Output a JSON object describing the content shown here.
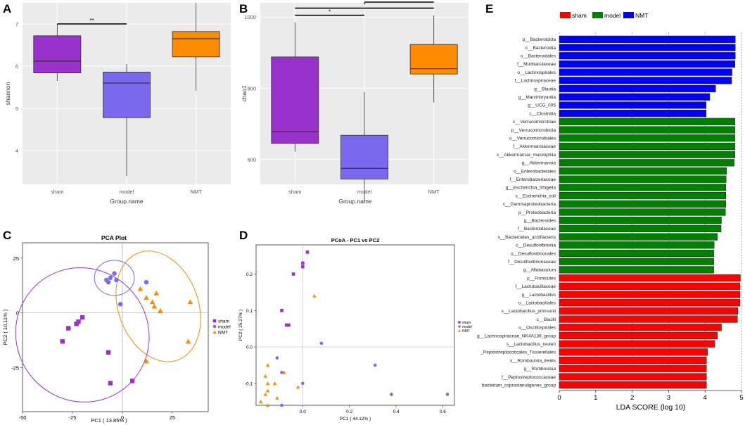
{
  "panel_letters": [
    "A",
    "B",
    "C",
    "D",
    "E"
  ],
  "chart_data": [
    {
      "type": "box",
      "panel": "A",
      "ylabel": "shannon",
      "xlabel": "Group.name",
      "ylim": [
        3.2,
        7.5
      ],
      "yticks": [
        4,
        5,
        6,
        7
      ],
      "categories": [
        "sham",
        "model",
        "NMT"
      ],
      "boxes": [
        {
          "group": "sham",
          "min": 5.65,
          "q1": 5.84,
          "median": 6.12,
          "q3": 6.72,
          "max": 7.0,
          "color": "#9932CC"
        },
        {
          "group": "model",
          "min": 3.4,
          "q1": 4.78,
          "median": 5.6,
          "q3": 5.86,
          "max": 6.05,
          "color": "#7B68EE"
        },
        {
          "group": "NMT",
          "min": 5.42,
          "q1": 6.22,
          "median": 6.65,
          "q3": 6.82,
          "max": 7.5,
          "color": "#FF8C00"
        }
      ],
      "significance": [
        {
          "from": 0,
          "to": 1,
          "label": "**",
          "y": 7.0
        },
        {
          "from": 1,
          "to": 2,
          "label": "**",
          "y": 7.6
        }
      ]
    },
    {
      "type": "box",
      "panel": "B",
      "ylabel": "chao1",
      "xlabel": "Group.name",
      "ylim": [
        530,
        1040
      ],
      "yticks": [
        600,
        800,
        1000
      ],
      "categories": [
        "sham",
        "model",
        "NMT"
      ],
      "boxes": [
        {
          "group": "sham",
          "min": 622,
          "q1": 645,
          "median": 678,
          "q3": 888,
          "max": 985,
          "color": "#9932CC"
        },
        {
          "group": "model",
          "min": 478,
          "q1": 545,
          "median": 575,
          "q3": 668,
          "max": 790,
          "color": "#7B68EE"
        },
        {
          "group": "NMT",
          "min": 760,
          "q1": 840,
          "median": 855,
          "q3": 923,
          "max": 1005,
          "color": "#FF8C00"
        }
      ],
      "significance": [
        {
          "from": 0,
          "to": 1,
          "label": "*",
          "y": 1005
        },
        {
          "from": 0,
          "to": 2,
          "label": "*",
          "y": 1025
        },
        {
          "from": 1,
          "to": 2,
          "label": "**",
          "y": 1042
        }
      ]
    },
    {
      "type": "scatter",
      "panel": "C",
      "title": "PCA Plot",
      "xlabel": "PC1 ( 13.85% )",
      "ylabel": "PC2 ( 10.11% )",
      "xlim": [
        -50,
        43
      ],
      "ylim": [
        -45,
        32
      ],
      "xticks": [
        -50,
        -25,
        0,
        25
      ],
      "yticks": [
        -25,
        0,
        25
      ],
      "legend": [
        "sham",
        "model",
        "NMT"
      ],
      "legend_position": "right",
      "series": [
        {
          "name": "sham",
          "shape": "square",
          "color": "#9932CC",
          "points": [
            [
              -30,
              -13
            ],
            [
              -27,
              -7
            ],
            [
              -23,
              -5
            ],
            [
              -22,
              -4
            ],
            [
              -20,
              -2
            ],
            [
              -7,
              -18
            ],
            [
              -6,
              -32
            ],
            [
              5,
              -31
            ]
          ]
        },
        {
          "name": "model",
          "shape": "circle",
          "color": "#7B68EE",
          "points": [
            [
              -8,
              15
            ],
            [
              -7,
              14
            ],
            [
              -6,
              16
            ],
            [
              -4,
              18
            ],
            [
              -3,
              15
            ],
            [
              -1,
              4
            ],
            [
              12,
              14
            ]
          ]
        },
        {
          "name": "NMT",
          "shape": "triangle",
          "color": "#FF8C00",
          "points": [
            [
              9,
              11
            ],
            [
              12,
              7
            ],
            [
              15,
              5
            ],
            [
              16,
              3
            ],
            [
              17,
              9
            ],
            [
              19,
              1
            ],
            [
              12,
              -22
            ],
            [
              34,
              5
            ],
            [
              33,
              -13
            ]
          ]
        }
      ],
      "ellipses": [
        {
          "name": "sham",
          "cx": -20,
          "cy": -10,
          "rx": 33,
          "ry": 31,
          "angle": -40,
          "color": "#9932CC"
        },
        {
          "name": "model",
          "cx": -4,
          "cy": 16,
          "rx": 10,
          "ry": 8,
          "angle": 0,
          "color": "#7B68EE"
        },
        {
          "name": "NMT",
          "cx": 18,
          "cy": 3,
          "rx": 20,
          "ry": 26,
          "angle": -20,
          "color": "#FF8C00"
        }
      ]
    },
    {
      "type": "scatter",
      "panel": "D",
      "title": "PCoA - PC1 vs PC2",
      "xlabel": "PC1 ( 44.12% )",
      "ylabel": "PC2 ( 25.27% )",
      "xlim": [
        -0.2,
        0.65
      ],
      "ylim": [
        -0.16,
        0.28
      ],
      "xticks": [
        0.0,
        0.2,
        0.4,
        0.6
      ],
      "xtick_labels": [
        "0.0",
        "0.2",
        "0.4",
        "0.6"
      ],
      "yticks": [
        -0.1,
        0.0,
        0.1,
        0.2
      ],
      "ytick_labels": [
        "-0.1",
        "0.0",
        "0.1",
        "0.2"
      ],
      "legend": [
        "sham",
        "model",
        "NMT"
      ],
      "legend_position": "right",
      "series": [
        {
          "name": "sham",
          "shape": "square",
          "color": "#9932CC",
          "points": [
            [
              0.02,
              0.26
            ],
            [
              0.0,
              0.23
            ],
            [
              0.0,
              0.22
            ],
            [
              -0.04,
              0.2
            ],
            [
              -0.09,
              0.1
            ],
            [
              -0.07,
              0.06
            ],
            [
              -0.06,
              0.06
            ]
          ]
        },
        {
          "name": "model",
          "shape": "circle",
          "color": "#7B68EE",
          "points": [
            [
              -0.11,
              -0.03
            ],
            [
              -0.09,
              -0.07
            ],
            [
              0.0,
              -0.1
            ],
            [
              0.08,
              0.01
            ],
            [
              0.31,
              -0.05
            ],
            [
              0.38,
              -0.13
            ],
            [
              0.62,
              -0.13
            ],
            [
              -0.09,
              -0.16
            ]
          ]
        },
        {
          "name": "NMT",
          "shape": "triangle",
          "color": "#FF8C00",
          "points": [
            [
              0.05,
              0.14
            ],
            [
              -0.15,
              -0.05
            ],
            [
              -0.16,
              -0.08
            ],
            [
              -0.12,
              -0.1
            ],
            [
              -0.15,
              -0.12
            ],
            [
              -0.16,
              -0.13
            ],
            [
              -0.18,
              -0.15
            ],
            [
              -0.15,
              -0.16
            ],
            [
              -0.11,
              -0.14
            ],
            [
              -0.02,
              -0.11
            ],
            [
              -0.08,
              -0.07
            ],
            [
              -0.15,
              -0.1
            ]
          ]
        }
      ]
    },
    {
      "type": "bar",
      "orientation": "horizontal",
      "panel": "E",
      "xlabel": "LDA SCORE (log 10)",
      "xlim": [
        0,
        5
      ],
      "xticks": [
        0,
        1,
        2,
        3,
        4,
        5
      ],
      "legend": [
        {
          "name": "sham",
          "color": "#FF0000"
        },
        {
          "name": "model",
          "color": "#008000"
        },
        {
          "name": "NMT",
          "color": "#0000FF"
        }
      ],
      "categories": [
        "p__Bacteroidota",
        "c__Bacteroidia",
        "o__Bacteroidales",
        "f__Muribaculaceae",
        "o__Lachnospirales",
        "f__Lachnospiraceae",
        "g__Blautia",
        "g__Marvinbryantia",
        "g__UCG_005",
        "c__Clostridia",
        "c__Verrucomicrobiae",
        "p__Verrucomicrobiota",
        "o__Verrucomicrobiales",
        "f__Akkermansiaceae",
        "s__Akkermansia_muciniphila",
        "g__Akkermansia",
        "o__Enterobacterales",
        "f__Enterobacteriaceae",
        "g__Escherichia_Shigella",
        "s__Escherichia_coli",
        "c__Gammaproteobacteria",
        "p__Proteobacteria",
        "g__Bacteroides",
        "f__Bacteroidaceae",
        "s__Bacteroides_acidifaciens",
        "c__Desulfovibrionia",
        "o__Desulfovibrionales",
        "f__Desulfovibrionaceae",
        "g__Allobaculum",
        "p__Firmicutes",
        "f__Lactobacillaceae",
        "g__Lactobacillus",
        "o__Lactobacillales",
        "s__Lactobacillus_johnsonii",
        "c__Bacilli",
        "o__Oscillospirales",
        "g__Lachnospiraceae_NK4A136_group",
        "s__Lactobacillus_reuteri",
        "o__Peptostreptococcales_Tissierellales",
        "s__Romboutsia_ilealis",
        "g__Romboutsia",
        "f__Peptostreptococcaceae",
        "g__bacterium_coprostanoligenes_group"
      ],
      "category_labels": [
        "p__Bacteroidota",
        "c__Bacteroidia",
        "o__Bacteroidales",
        "f__Muribaculaceae",
        "o__Lachnospirales",
        "f__Lachnospiraceae",
        "g__Blautia",
        "g__Marvinbryantia",
        "g__UCG_005",
        "c__Clostridia",
        "c__Verrucomicrobiae",
        "p__Verrucomicrobiota",
        "o__Verrucomicrobiales",
        "f__Akkermansiaceae",
        "s__Akkermansia_muciniphila",
        "g__Akkermansia",
        "o__Enterobacterales",
        "f__Enterobacteriaceae",
        "g__Escherichia_Shigella",
        "s__Escherichia_coli",
        "c__Gammaproteobacteria",
        "p__Proteobacteria",
        "g__Bacteroides",
        "f__Bacteroidaceae",
        "s__Bacteroides_acidifaciens",
        "c__Desulfovibrionia",
        "o__Desulfovibrionales",
        "f__Desulfovibrionaceae",
        "g__Allobaculum",
        "p__Firmicutes",
        "f__Lactobacillaceae",
        "g__Lactobacillus",
        "o__Lactobacillales",
        "s__Lactobacillus_johnsonii",
        "c__Bacilli",
        "o__Oscillospirales",
        "g__Lachnospiraceae_NK4A136_group",
        "s__Lactobacillus_reuteri",
        "_Peptostreptococcales_Tissierellales",
        "s__Romboutsia_ilealis",
        "g__Romboutsia",
        "f__Peptostreptococcaceae",
        "bacterium_coprostanoligenes_group"
      ],
      "groups": [
        "NMT",
        "NMT",
        "NMT",
        "NMT",
        "NMT",
        "NMT",
        "NMT",
        "NMT",
        "NMT",
        "NMT",
        "model",
        "model",
        "model",
        "model",
        "model",
        "model",
        "model",
        "model",
        "model",
        "model",
        "model",
        "model",
        "model",
        "model",
        "model",
        "model",
        "model",
        "model",
        "model",
        "sham",
        "sham",
        "sham",
        "sham",
        "sham",
        "sham",
        "sham",
        "sham",
        "sham",
        "sham",
        "sham",
        "sham",
        "sham",
        "sham"
      ],
      "values": [
        4.83,
        4.83,
        4.83,
        4.82,
        4.74,
        4.73,
        4.29,
        4.13,
        4.03,
        4.03,
        4.82,
        4.82,
        4.82,
        4.82,
        4.82,
        4.8,
        4.59,
        4.58,
        4.57,
        4.57,
        4.57,
        4.56,
        4.45,
        4.44,
        4.34,
        4.25,
        4.24,
        4.24,
        4.24,
        4.97,
        4.96,
        4.96,
        4.96,
        4.9,
        4.89,
        4.45,
        4.34,
        4.27,
        4.07,
        4.04,
        4.04,
        4.04,
        4.04
      ]
    }
  ]
}
